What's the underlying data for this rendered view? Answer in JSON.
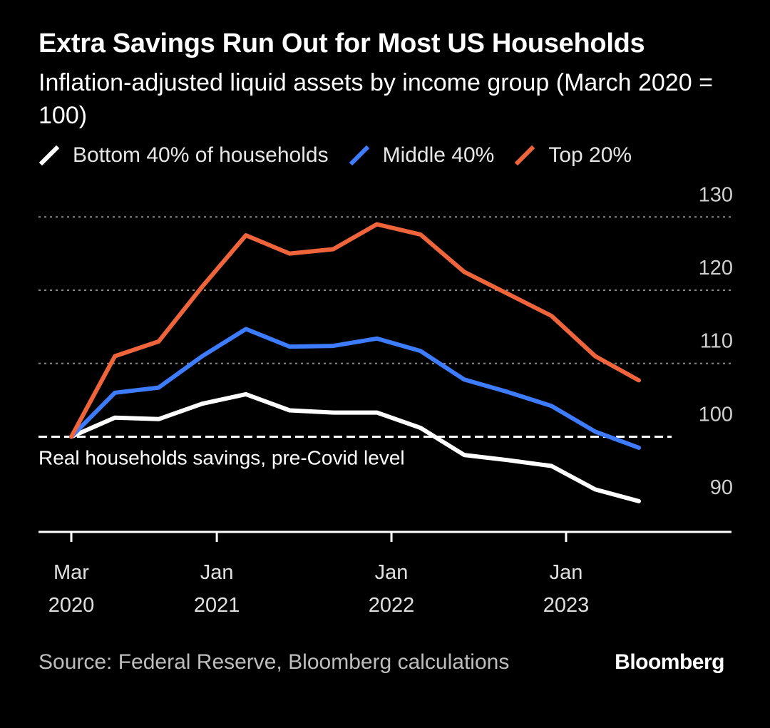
{
  "header": {
    "title": "Extra Savings Run Out for Most US Households",
    "subtitle": "Inflation-adjusted liquid assets by income group (March 2020 = 100)"
  },
  "footer": {
    "source": "Source: Federal Reserve, Bloomberg calculations",
    "brand": "Bloomberg"
  },
  "chart_data": {
    "type": "line",
    "title": "Extra Savings Run Out for Most US Households",
    "subtitle": "Inflation-adjusted liquid assets by income group (March 2020 = 100)",
    "x": [
      "2020-03",
      "2020-06",
      "2020-09",
      "2020-12",
      "2021-03",
      "2021-06",
      "2021-09",
      "2021-12",
      "2022-03",
      "2022-06",
      "2022-09",
      "2022-12",
      "2023-03",
      "2023-06"
    ],
    "series": [
      {
        "name": "Bottom 40% of households",
        "color": "#ffffff",
        "values": [
          100,
          102.6,
          102.4,
          104.5,
          105.8,
          103.6,
          103.3,
          103.3,
          101.2,
          97.5,
          96.8,
          96.0,
          92.8,
          91.2
        ]
      },
      {
        "name": "Middle 40%",
        "color": "#3d7bff",
        "values": [
          100,
          106.0,
          106.7,
          111.0,
          114.7,
          112.3,
          112.4,
          113.4,
          111.7,
          107.8,
          106.1,
          104.2,
          100.7,
          98.5
        ]
      },
      {
        "name": "Top 20%",
        "color": "#f0643c",
        "values": [
          100,
          111.0,
          113.0,
          120.5,
          127.5,
          125.0,
          125.6,
          129.0,
          127.6,
          122.5,
          119.5,
          116.5,
          111.0,
          107.7
        ]
      }
    ],
    "baseline": {
      "value": 100,
      "label": "Real households savings, pre-Covid level"
    },
    "y_axis": {
      "ticks": [
        90,
        100,
        110,
        120,
        130
      ],
      "range": [
        87,
        131
      ],
      "position": "right",
      "grid": "dotted"
    },
    "x_axis": {
      "ticks": [
        {
          "at": "2020-03",
          "label1": "Mar",
          "label2": "2020"
        },
        {
          "at": "2021-01",
          "label1": "Jan",
          "label2": "2021"
        },
        {
          "at": "2022-01",
          "label1": "Jan",
          "label2": "2022"
        },
        {
          "at": "2023-01",
          "label1": "Jan",
          "label2": "2023"
        }
      ]
    },
    "legend": {
      "placement": "top-left"
    }
  }
}
